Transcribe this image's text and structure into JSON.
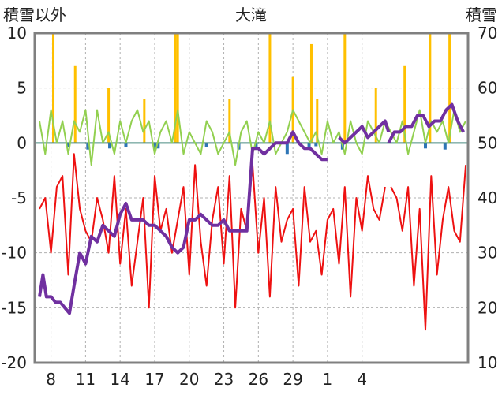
{
  "chart_data": {
    "type": "line",
    "title": "大滝",
    "left_axis_label": "積雪以外",
    "right_axis_label": "積雪",
    "left_ylim": [
      -20,
      10
    ],
    "left_yticks": [
      "10",
      "5",
      "0",
      "-5",
      "-10",
      "-15",
      "-20"
    ],
    "right_ylim": [
      10,
      70
    ],
    "right_yticks": [
      "70",
      "60",
      "50",
      "40",
      "30",
      "20",
      "10"
    ],
    "xtick_labels": [
      "8",
      "11",
      "14",
      "17",
      "20",
      "23",
      "26",
      "29",
      "1",
      "4"
    ],
    "grid": true,
    "colors": {
      "snow_depth": "#7030a0",
      "temperature_red": "#ee1111",
      "temperature_green": "#92d050",
      "precip_yellow": "#ffc000",
      "bars_blue": "#2e75b6",
      "zero_line": "#4a8c82",
      "frame": "#808080",
      "grid": "#b0b0b0"
    },
    "series": [
      {
        "key": "snow_depth",
        "axis": "right",
        "x": [
          0,
          0.3,
          0.6,
          1,
          1.4,
          1.8,
          2.2,
          2.6,
          3,
          3.5,
          4,
          4.5,
          5,
          5.5,
          6,
          6.5,
          7,
          7.5,
          8,
          8.5,
          9,
          9.5,
          10,
          10.5,
          11,
          11.5,
          12,
          12.5,
          13,
          13.5,
          14,
          14.5,
          15,
          15.5,
          16,
          16.5,
          17,
          17.5,
          18,
          18.5,
          19,
          19.5,
          20,
          20.5,
          21,
          21.5,
          22,
          22.5,
          23,
          23.5,
          24,
          24.5,
          25,
          25.2,
          25.5,
          26,
          26.5,
          27,
          27.5,
          28,
          28.5,
          29,
          29.5,
          30,
          30.3,
          31.5,
          32,
          32.5,
          33,
          33.5,
          34,
          34.5,
          35,
          35.5,
          36,
          36.5,
          37
        ],
        "y": [
          22,
          26,
          22,
          22,
          21,
          21,
          20,
          19,
          24,
          30,
          28,
          33,
          32,
          35,
          34,
          33,
          37,
          39,
          36,
          36,
          36,
          35,
          35,
          34,
          33,
          31,
          30,
          31,
          36,
          36,
          37,
          36,
          35,
          35,
          36,
          34,
          34,
          34,
          34,
          49,
          49,
          48,
          49,
          50,
          50,
          50,
          52,
          50,
          49,
          49,
          48,
          47,
          47,
          null,
          null,
          51,
          50,
          51,
          52,
          53,
          51,
          52,
          53,
          54,
          52,
          null,
          null,
          null,
          null,
          null,
          null,
          null,
          null,
          null,
          null,
          null,
          null
        ]
      },
      {
        "key": "snow_depth_late",
        "axis": "right",
        "x": [
          30.3,
          30.8,
          31.3,
          31.8,
          32.3,
          32.8,
          33.3,
          33.8,
          34.3,
          34.8,
          35.3,
          35.8,
          36.3,
          36.8
        ],
        "y": [
          50,
          52,
          52,
          53,
          53,
          55,
          55,
          53,
          54,
          54,
          56,
          57,
          54,
          52
        ]
      },
      {
        "key": "temperature_red",
        "axis": "left",
        "x": [
          0,
          0.5,
          1,
          1.5,
          2,
          2.5,
          3,
          3.5,
          4,
          4.5,
          5,
          5.5,
          6,
          6.5,
          7,
          7.5,
          8,
          8.5,
          9,
          9.5,
          10,
          10.5,
          11,
          11.5,
          12,
          12.5,
          13,
          13.5,
          14,
          14.5,
          15,
          15.5,
          16,
          16.5,
          17,
          17.5,
          18,
          18.5,
          19,
          19.5,
          20,
          20.5,
          21,
          21.5,
          22,
          22.5,
          23,
          23.5,
          24,
          24.5,
          25,
          25.5,
          26,
          26.5,
          27,
          27.5,
          28,
          28.5,
          29,
          29.5,
          30
        ],
        "y": [
          -6,
          -5,
          -10,
          -4,
          -3,
          -12,
          -1,
          -6,
          -8,
          -9,
          -5,
          -7,
          -10,
          -3,
          -11,
          -6,
          -13,
          -9,
          -5,
          -15,
          -3,
          -8,
          -6,
          -10,
          -7,
          -4,
          -12,
          -2,
          -9,
          -13,
          -7,
          -4,
          -11,
          -3,
          -15,
          -6,
          -8,
          -2,
          -10,
          -5,
          -14,
          -4,
          -9,
          -7,
          -6,
          -13,
          -4,
          -9,
          -8,
          -12,
          -7,
          -6,
          -11,
          -4,
          -14,
          -5,
          -8,
          -3,
          -6,
          -7,
          -4
        ]
      },
      {
        "key": "temperature_red_late",
        "axis": "left",
        "x": [
          30.5,
          31,
          31.5,
          32,
          32.5,
          33,
          33.5,
          34,
          34.5,
          35,
          35.5,
          36,
          36.5,
          37
        ],
        "y": [
          -4,
          -5,
          -8,
          -4,
          -13,
          -6,
          -17,
          -3,
          -12,
          -7,
          -4,
          -8,
          -9,
          -2
        ]
      },
      {
        "key": "temperature_green",
        "axis": "left",
        "x": [
          0,
          0.5,
          1,
          1.5,
          2,
          2.5,
          3,
          3.5,
          4,
          4.5,
          5,
          5.5,
          6,
          6.5,
          7,
          7.5,
          8,
          8.5,
          9,
          9.5,
          10,
          10.5,
          11,
          11.5,
          12,
          12.5,
          13,
          13.5,
          14,
          14.5,
          15,
          15.5,
          16,
          16.5,
          17,
          17.5,
          18,
          18.5,
          19,
          19.5,
          20,
          20.5,
          21,
          21.5,
          22,
          22.5,
          23,
          23.5,
          24,
          24.5,
          25,
          25.5,
          26,
          26.5,
          27,
          27.5,
          28,
          28.5,
          29,
          29.5,
          30,
          30.5,
          31,
          31.5,
          32,
          32.5,
          33,
          33.5,
          34,
          34.5,
          35,
          35.5,
          36,
          36.5,
          37
        ],
        "y": [
          2,
          -1,
          3,
          0,
          2,
          -1,
          2,
          1,
          3,
          -2,
          3,
          0,
          1,
          -1,
          2,
          0,
          2,
          3,
          1,
          2,
          -1,
          1,
          2,
          0,
          3,
          -1,
          1,
          0,
          -1,
          2,
          1,
          -1,
          0,
          1,
          -2,
          1,
          2,
          -1,
          1,
          0,
          2,
          -1,
          0,
          1,
          3,
          2,
          1,
          0,
          1,
          -1,
          2,
          0,
          1,
          -1,
          2,
          0,
          -1,
          2,
          1,
          0,
          2,
          1,
          0,
          2,
          -1,
          1,
          3,
          0,
          2,
          1,
          2,
          0,
          3,
          1,
          2
        ]
      }
    ],
    "precip_bars": {
      "key": "precip_yellow",
      "axis": "left",
      "x": [
        1.2,
        3.1,
        6.0,
        9.1,
        11.8,
        12.0,
        16.5,
        20.0,
        22.0,
        23.6,
        24.1,
        26.5,
        29.2,
        31.7,
        33.9,
        35.6
      ],
      "values": [
        10,
        7,
        5,
        4,
        10,
        10,
        4,
        10,
        6,
        9,
        4,
        10,
        5,
        7,
        10,
        10
      ]
    },
    "negative_bars": {
      "key": "bars_blue",
      "axis": "left",
      "x": [
        2.5,
        4.2,
        6.1,
        7.5,
        10.0,
        10.3,
        14.5,
        17.3,
        18.8,
        21.5,
        23.4,
        24.0,
        26.3,
        33.5,
        35.2
      ],
      "values": [
        -0.4,
        -0.6,
        -0.5,
        -0.4,
        -0.6,
        -0.5,
        -0.4,
        -0.6,
        -0.5,
        -1,
        -0.4,
        -0.3,
        -0.6,
        -0.5,
        -0.6
      ]
    }
  }
}
